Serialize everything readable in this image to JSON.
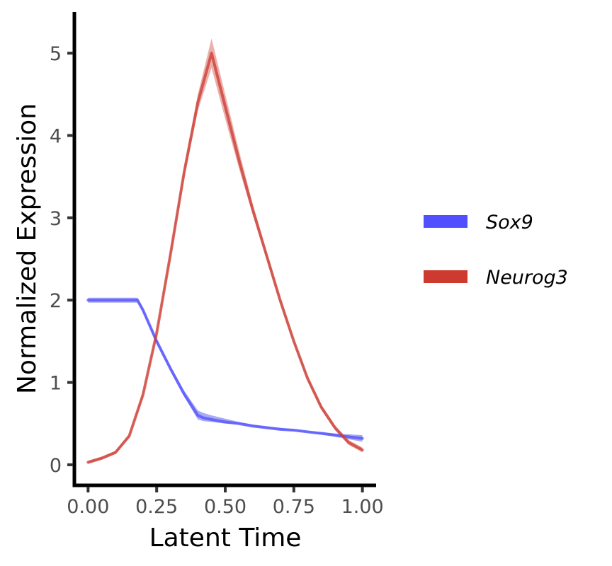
{
  "chart_data": {
    "type": "line",
    "title": "",
    "xlabel": "Latent Time",
    "ylabel": "Normalized Expression",
    "xlim": [
      -0.05,
      1.05
    ],
    "ylim": [
      -0.25,
      5.5
    ],
    "x_ticks": [
      0.0,
      0.25,
      0.5,
      0.75,
      1.0
    ],
    "x_tick_labels": [
      "0.00",
      "0.25",
      "0.50",
      "0.75",
      "1.00"
    ],
    "y_ticks": [
      0,
      1,
      2,
      3,
      4,
      5
    ],
    "y_tick_labels": [
      "0",
      "1",
      "2",
      "3",
      "4",
      "5"
    ],
    "grid": false,
    "legend_position": "right",
    "series": [
      {
        "name": "Sox9",
        "color": "#5050ff",
        "band_color": "#9a9af5",
        "x": [
          0.0,
          0.05,
          0.1,
          0.15,
          0.18,
          0.2,
          0.25,
          0.3,
          0.35,
          0.4,
          0.42,
          0.45,
          0.5,
          0.55,
          0.6,
          0.65,
          0.7,
          0.75,
          0.8,
          0.85,
          0.9,
          0.95,
          1.0
        ],
        "values": [
          2.0,
          2.0,
          2.0,
          2.0,
          2.0,
          1.88,
          1.5,
          1.17,
          0.86,
          0.6,
          0.57,
          0.55,
          0.52,
          0.5,
          0.47,
          0.45,
          0.43,
          0.42,
          0.4,
          0.38,
          0.36,
          0.34,
          0.32
        ],
        "band_lower": [
          1.97,
          1.97,
          1.97,
          1.97,
          1.97,
          1.85,
          1.47,
          1.14,
          0.83,
          0.55,
          0.53,
          0.52,
          0.5,
          0.49,
          0.46,
          0.44,
          0.42,
          0.41,
          0.39,
          0.37,
          0.34,
          0.31,
          0.28
        ],
        "band_upper": [
          2.03,
          2.03,
          2.03,
          2.03,
          2.03,
          1.91,
          1.53,
          1.2,
          0.9,
          0.66,
          0.63,
          0.6,
          0.56,
          0.52,
          0.49,
          0.47,
          0.45,
          0.43,
          0.41,
          0.4,
          0.38,
          0.37,
          0.36
        ]
      },
      {
        "name": "Neurog3",
        "color": "#cc3a30",
        "band_color": "#e9a29c",
        "x": [
          0.0,
          0.05,
          0.1,
          0.15,
          0.2,
          0.25,
          0.3,
          0.35,
          0.4,
          0.45,
          0.5,
          0.55,
          0.6,
          0.65,
          0.7,
          0.75,
          0.8,
          0.85,
          0.9,
          0.95,
          1.0
        ],
        "values": [
          0.03,
          0.08,
          0.15,
          0.35,
          0.85,
          1.6,
          2.55,
          3.55,
          4.4,
          5.0,
          4.35,
          3.7,
          3.1,
          2.55,
          2.0,
          1.5,
          1.05,
          0.7,
          0.45,
          0.27,
          0.18
        ],
        "band_lower": [
          0.01,
          0.06,
          0.13,
          0.33,
          0.82,
          1.57,
          2.5,
          3.48,
          4.3,
          4.82,
          4.2,
          3.6,
          3.04,
          2.5,
          1.96,
          1.47,
          1.02,
          0.67,
          0.42,
          0.24,
          0.15
        ],
        "band_upper": [
          0.05,
          0.1,
          0.17,
          0.37,
          0.88,
          1.63,
          2.6,
          3.62,
          4.5,
          5.18,
          4.5,
          3.82,
          3.17,
          2.6,
          2.04,
          1.53,
          1.08,
          0.73,
          0.48,
          0.3,
          0.21
        ]
      }
    ]
  }
}
